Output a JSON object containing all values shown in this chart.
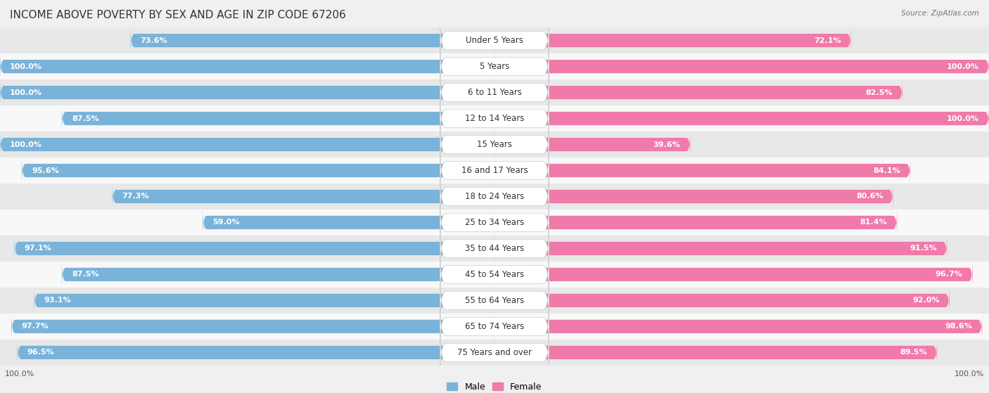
{
  "title": "INCOME ABOVE POVERTY BY SEX AND AGE IN ZIP CODE 67206",
  "source": "Source: ZipAtlas.com",
  "categories": [
    "Under 5 Years",
    "5 Years",
    "6 to 11 Years",
    "12 to 14 Years",
    "15 Years",
    "16 and 17 Years",
    "18 to 24 Years",
    "25 to 34 Years",
    "35 to 44 Years",
    "45 to 54 Years",
    "55 to 64 Years",
    "65 to 74 Years",
    "75 Years and over"
  ],
  "male_values": [
    73.6,
    100.0,
    100.0,
    87.5,
    100.0,
    95.6,
    77.3,
    59.0,
    97.1,
    87.5,
    93.1,
    97.7,
    96.5
  ],
  "female_values": [
    72.1,
    100.0,
    82.5,
    100.0,
    39.6,
    84.1,
    80.6,
    81.4,
    91.5,
    96.7,
    92.0,
    98.6,
    89.5
  ],
  "male_color": "#7ab3d9",
  "male_color_light": "#b8d4e8",
  "female_color": "#f07aaa",
  "female_color_light": "#f5b8d0",
  "male_label": "Male",
  "female_label": "Female",
  "background_color": "#f0f0f0",
  "row_colors": [
    "#e8e8e8",
    "#f8f8f8"
  ],
  "title_fontsize": 11,
  "label_fontsize": 8.5,
  "value_fontsize": 8,
  "x_axis_label_left": "100.0%",
  "x_axis_label_right": "100.0%"
}
